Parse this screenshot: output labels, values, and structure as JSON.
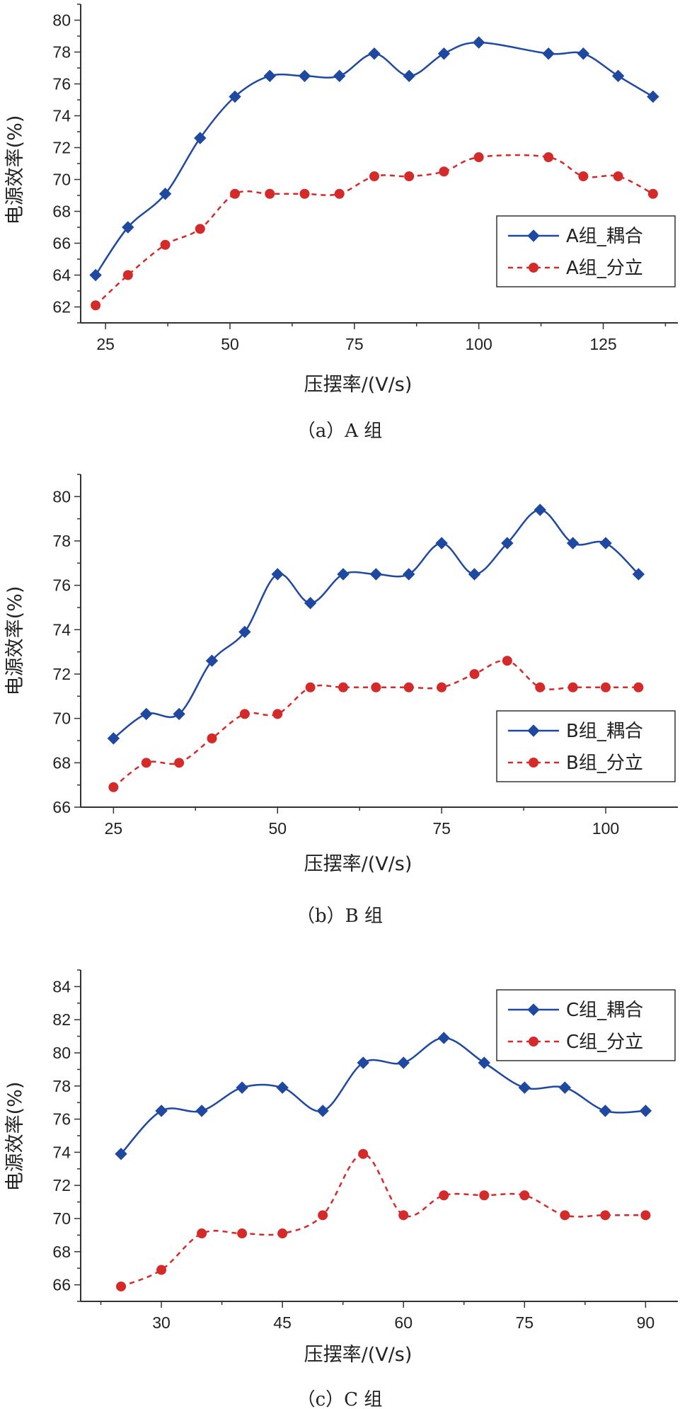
{
  "colors": {
    "coupled": "#1f48a0",
    "separate": "#d42a2a",
    "axis": "#333333"
  },
  "chart_data": [
    {
      "type": "line",
      "caption": "（a）A 组",
      "xlabel": "压摆率/(V/s)",
      "ylabel": "电源效率(%)",
      "xlim": [
        20,
        140
      ],
      "ylim": [
        61,
        81
      ],
      "xticks": [
        25,
        50,
        75,
        100,
        125
      ],
      "yticks": [
        62,
        64,
        66,
        68,
        70,
        72,
        74,
        76,
        78,
        80
      ],
      "legend_position": "right-middle",
      "series": [
        {
          "name": "A组_耦合",
          "style": "coupled",
          "x": [
            23,
            29.5,
            37,
            44,
            51,
            58,
            65,
            72,
            79,
            86,
            93,
            100,
            114,
            121,
            128,
            135
          ],
          "y": [
            64.0,
            67.0,
            69.1,
            72.6,
            75.2,
            76.5,
            76.5,
            76.5,
            77.9,
            76.5,
            77.9,
            78.6,
            77.9,
            77.9,
            76.5,
            75.2
          ]
        },
        {
          "name": "A组_分立",
          "style": "separate",
          "x": [
            23,
            29.5,
            37,
            44,
            51,
            58,
            65,
            72,
            79,
            86,
            93,
            100,
            114,
            121,
            128,
            135
          ],
          "y": [
            62.1,
            64.0,
            65.9,
            66.9,
            69.1,
            69.1,
            69.1,
            69.1,
            70.2,
            70.2,
            70.5,
            71.4,
            71.4,
            70.2,
            70.2,
            69.1
          ]
        }
      ]
    },
    {
      "type": "line",
      "caption": "（b）B 组",
      "xlabel": "压摆率/(V/s)",
      "ylabel": "电源效率(%)",
      "xlim": [
        20,
        111
      ],
      "ylim": [
        66,
        81
      ],
      "xticks": [
        25,
        50,
        75,
        100
      ],
      "yticks": [
        66,
        68,
        70,
        72,
        74,
        76,
        78,
        80
      ],
      "legend_position": "bottom-right",
      "series": [
        {
          "name": "B组_耦合",
          "style": "coupled",
          "x": [
            25,
            30,
            35,
            40,
            45,
            50,
            55,
            60,
            65,
            70,
            75,
            80,
            85,
            90,
            95,
            100,
            105
          ],
          "y": [
            69.1,
            70.2,
            70.2,
            72.6,
            73.9,
            76.5,
            75.2,
            76.5,
            76.5,
            76.5,
            77.9,
            76.5,
            77.9,
            79.4,
            77.9,
            77.9,
            76.5
          ]
        },
        {
          "name": "B组_分立",
          "style": "separate",
          "x": [
            25,
            30,
            35,
            40,
            45,
            50,
            55,
            60,
            65,
            70,
            75,
            80,
            85,
            90,
            95,
            100,
            105
          ],
          "y": [
            66.9,
            68.0,
            68.0,
            69.1,
            70.2,
            70.2,
            71.4,
            71.4,
            71.4,
            71.4,
            71.4,
            72.0,
            72.6,
            71.4,
            71.4,
            71.4,
            71.4
          ]
        }
      ]
    },
    {
      "type": "line",
      "caption": "（c）C 组",
      "xlabel": "压摆率/(V/s)",
      "ylabel": "电源效率(%)",
      "xlim": [
        20,
        94
      ],
      "ylim": [
        65,
        85
      ],
      "xticks": [
        30,
        45,
        60,
        75,
        90
      ],
      "yticks": [
        66,
        68,
        70,
        72,
        74,
        76,
        78,
        80,
        82,
        84
      ],
      "legend_position": "top-right",
      "series": [
        {
          "name": "C组_耦合",
          "style": "coupled",
          "x": [
            25,
            30,
            35,
            40,
            45,
            50,
            55,
            60,
            65,
            70,
            75,
            80,
            85,
            90
          ],
          "y": [
            73.9,
            76.5,
            76.5,
            77.9,
            77.9,
            76.5,
            79.4,
            79.4,
            80.9,
            79.4,
            77.9,
            77.9,
            76.5,
            76.5
          ]
        },
        {
          "name": "C组_分立",
          "style": "separate",
          "x": [
            25,
            30,
            35,
            40,
            45,
            50,
            55,
            60,
            65,
            70,
            75,
            80,
            85,
            90
          ],
          "y": [
            65.9,
            66.9,
            69.1,
            69.1,
            69.1,
            70.2,
            73.9,
            70.2,
            71.4,
            71.4,
            71.4,
            70.2,
            70.2,
            70.2
          ]
        }
      ]
    }
  ]
}
